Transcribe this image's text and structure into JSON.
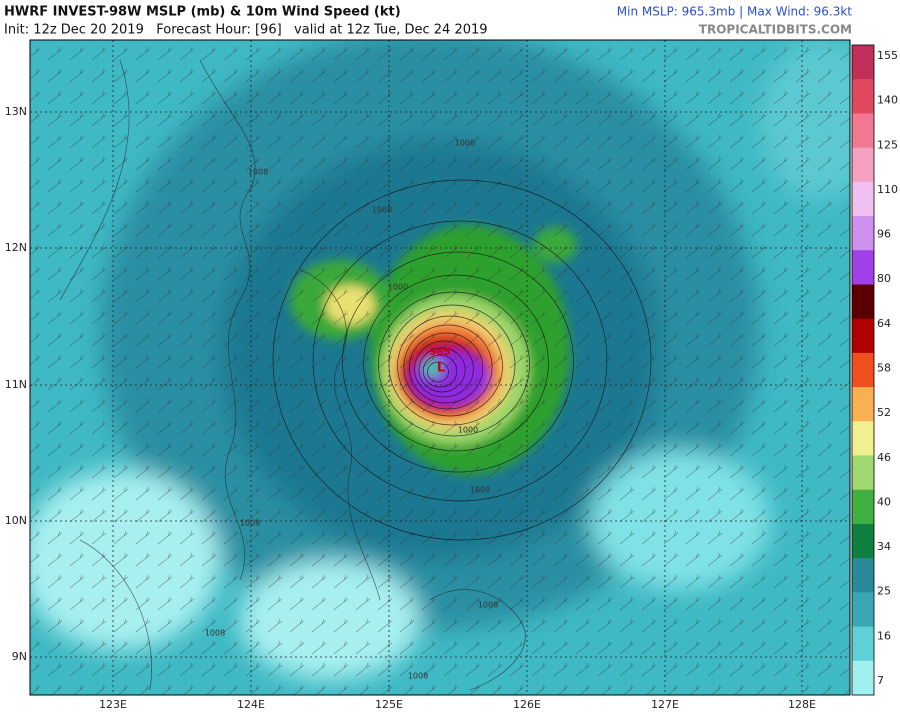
{
  "header": {
    "title": "HWRF INVEST-98W MSLP (mb) & 10m Wind Speed (kt)",
    "subtitle": "Init: 12z Dec 20 2019   Forecast Hour: [96]   valid at 12z Tue, Dec 24 2019",
    "stats": "Min MSLP: 965.3mb | Max Wind: 96.3kt",
    "source": "TROPICALTIDBITS.COM"
  },
  "map": {
    "lat_labels": [
      "13N",
      "12N",
      "11N",
      "10N",
      "9N"
    ],
    "lon_labels": [
      "123E",
      "124E",
      "125E",
      "126E",
      "127E",
      "128E"
    ],
    "contour_labels": [
      "1008",
      "1008",
      "1008",
      "1000",
      "1000",
      "1008",
      "1008",
      "1008",
      "1008",
      "1008"
    ],
    "center_pressure": "965",
    "low_marker": "L"
  },
  "colorbar": {
    "labels": [
      155,
      140,
      125,
      110,
      96,
      80,
      64,
      58,
      52,
      46,
      40,
      34,
      25,
      16,
      7
    ]
  }
}
